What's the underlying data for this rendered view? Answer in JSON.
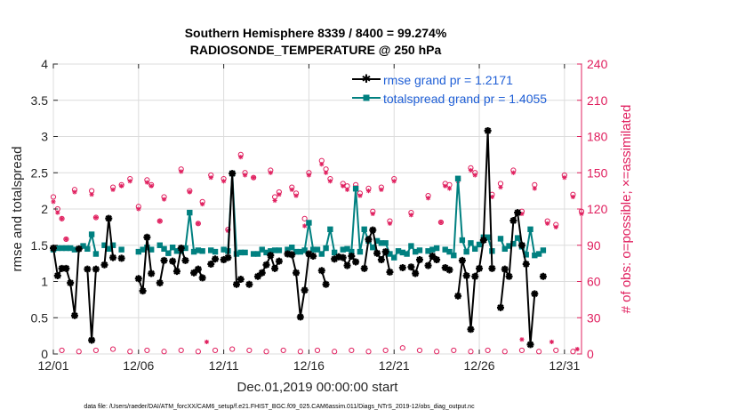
{
  "chart_data": {
    "type": "line",
    "title_line1": "Southern Hemisphere 8339 / 8400 = 99.274%",
    "title_line2": "RADIOSONDE_TEMPERATURE @ 250 hPa",
    "xlabel": "Dec.01,2019 00:00:00 start",
    "ylabel_left": "rmse and totalspread",
    "ylabel_right": "# of obs: o=possible; ×=assimilated",
    "footnote": "data file: /Users/raeder/DAI/ATM_forcXX/CAM6_setup/f.e21.FHIST_BGC.f09_025.CAM6assim.011/Diags_NTrS_2019-12/obs_diag_output.nc",
    "xlim": [
      0,
      31
    ],
    "ylim_left": [
      0,
      4
    ],
    "ylim_right": [
      0,
      240
    ],
    "x_ticks": [
      0,
      5,
      10,
      15,
      20,
      25,
      30
    ],
    "x_tick_labels": [
      "12/01",
      "12/06",
      "12/11",
      "12/16",
      "12/21",
      "12/26",
      "12/31"
    ],
    "y_ticks_left": [
      0,
      0.5,
      1,
      1.5,
      2,
      2.5,
      3,
      3.5,
      4
    ],
    "y_tick_labels_left": [
      "0",
      "0.5",
      "1",
      "1.5",
      "2",
      "2.5",
      "3",
      "3.5",
      "4"
    ],
    "y_ticks_right": [
      0,
      30,
      60,
      90,
      120,
      150,
      180,
      210,
      240
    ],
    "y_tick_labels_right": [
      "0",
      "30",
      "60",
      "90",
      "120",
      "150",
      "180",
      "210",
      "240"
    ],
    "x_step_days": 0.25,
    "colors": {
      "rmse": "#000000",
      "spread": "#008080",
      "obs": "#e0205f",
      "axis_right": "#e0205f"
    },
    "series": [
      {
        "name": "rmse grand pr = 1.2171",
        "key": "rmse",
        "values": [
          1.46,
          1.08,
          1.18,
          1.18,
          0.98,
          0.53,
          1.45,
          null,
          1.17,
          0.19,
          1.17,
          null,
          1.23,
          1.87,
          1.33,
          null,
          1.32,
          null,
          null,
          null,
          1.04,
          0.87,
          1.61,
          1.11,
          null,
          0.98,
          1.29,
          null,
          1.28,
          1.14,
          1.46,
          1.29,
          null,
          1.12,
          1.17,
          1.05,
          null,
          1.24,
          1.31,
          null,
          1.3,
          1.33,
          2.49,
          0.96,
          1.03,
          null,
          0.96,
          null,
          1.07,
          1.12,
          1.23,
          1.36,
          1.18,
          1.28,
          null,
          1.38,
          1.37,
          1.12,
          0.51,
          0.88,
          1.38,
          1.35,
          null,
          1.15,
          0.96,
          null,
          1.31,
          1.34,
          1.33,
          1.22,
          1.35,
          1.27,
          null,
          1.18,
          1.58,
          1.71,
          1.39,
          1.3,
          1.41,
          1.13,
          null,
          null,
          1.19,
          null,
          1.2,
          1.11,
          1.3,
          null,
          1.22,
          1.35,
          1.3,
          null,
          1.19,
          1.16,
          null,
          0.8,
          1.29,
          1.08,
          0.34,
          1.07,
          1.18,
          1.57,
          3.08,
          1.18,
          null,
          0.64,
          1.17,
          1.07,
          1.84,
          1.95,
          1.5,
          1.24,
          0.13,
          0.83,
          null,
          1.07
        ]
      },
      {
        "name": "totalspread grand pr = 1.4055",
        "key": "spread",
        "values": [
          1.44,
          1.46,
          1.46,
          1.46,
          1.46,
          1.44,
          null,
          1.49,
          1.45,
          1.65,
          1.38,
          null,
          1.5,
          1.45,
          1.5,
          null,
          1.44,
          null,
          null,
          null,
          1.41,
          1.44,
          1.47,
          1.44,
          null,
          1.5,
          1.45,
          1.39,
          1.47,
          1.42,
          1.42,
          1.46,
          1.95,
          1.41,
          1.43,
          1.42,
          null,
          1.43,
          1.41,
          null,
          1.44,
          1.42,
          2.49,
          1.38,
          1.4,
          1.4,
          null,
          1.38,
          1.38,
          1.44,
          1.4,
          1.42,
          1.43,
          1.43,
          null,
          1.44,
          1.47,
          1.41,
          1.41,
          1.43,
          1.81,
          1.44,
          1.44,
          1.38,
          1.46,
          1.72,
          1.4,
          null,
          1.44,
          1.45,
          1.41,
          2.28,
          1.41,
          1.72,
          1.56,
          1.47,
          1.56,
          1.53,
          1.53,
          1.38,
          1.33,
          1.42,
          1.4,
          1.38,
          1.49,
          1.41,
          1.43,
          null,
          1.42,
          1.44,
          1.46,
          null,
          1.44,
          1.41,
          1.36,
          2.42,
          1.57,
          1.41,
          1.53,
          1.45,
          1.51,
          1.61,
          1.61,
          1.42,
          null,
          1.59,
          1.45,
          1.49,
          1.52,
          1.6,
          1.48,
          1.37,
          1.72,
          1.36,
          1.38,
          1.43
        ]
      }
    ],
    "obs_possible_days": [
      0.0,
      0.25,
      0.5,
      0.75,
      1.25,
      2.25,
      2.5,
      3.5,
      4.0,
      4.5,
      5.0,
      5.5,
      5.75,
      6.25,
      6.5,
      7.5,
      8.0,
      8.5,
      8.75,
      9.25,
      10.0,
      10.25,
      11.0,
      11.25,
      11.75,
      12.75,
      13.0,
      13.25,
      14.0,
      14.25,
      14.75,
      15.0,
      15.75,
      16.0,
      16.25,
      17.0,
      17.25,
      17.75,
      18.0,
      18.5,
      18.75,
      19.25,
      19.75,
      20.0,
      21.0,
      22.0,
      22.75,
      23.0,
      23.25,
      23.75,
      24.5,
      24.75,
      25.25,
      25.75,
      26.25,
      27.0,
      27.5,
      28.25,
      29.0,
      29.5,
      30.0,
      30.5,
      31.0
    ],
    "obs_possible_counts": [
      130,
      120,
      112,
      95,
      136,
      135,
      113,
      138,
      140,
      145,
      122,
      144,
      140,
      110,
      130,
      153,
      135,
      108,
      126,
      148,
      145,
      103,
      165,
      150,
      146,
      152,
      130,
      134,
      138,
      133,
      112,
      150,
      160,
      153,
      145,
      141,
      139,
      140,
      133,
      137,
      118,
      138,
      110,
      145,
      117,
      131,
      109,
      141,
      140,
      145,
      154,
      150,
      95,
      132,
      141,
      152,
      118,
      140,
      110,
      107,
      148,
      132,
      118
    ],
    "obs_assim_days": [
      0.0,
      0.25,
      0.5,
      0.75,
      1.25,
      2.25,
      2.5,
      3.5,
      4.0,
      4.5,
      5.0,
      5.5,
      5.75,
      6.25,
      6.5,
      7.5,
      8.0,
      8.5,
      8.75,
      9.25,
      10.0,
      10.25,
      11.0,
      11.25,
      11.75,
      12.75,
      13.0,
      13.25,
      14.0,
      14.25,
      14.75,
      15.0,
      15.75,
      16.0,
      16.25,
      17.0,
      17.25,
      17.75,
      18.0,
      18.5,
      18.75,
      19.25,
      19.75,
      20.0,
      21.0,
      22.0,
      22.75,
      23.0,
      23.25,
      23.75,
      24.5,
      24.75,
      25.25,
      25.75,
      26.25,
      27.0,
      27.5,
      28.25,
      29.0,
      29.5,
      30.0,
      30.5,
      31.0
    ],
    "obs_assim_counts": [
      126,
      117,
      112,
      95,
      134,
      132,
      113,
      136,
      139,
      143,
      120,
      142,
      139,
      110,
      128,
      151,
      134,
      108,
      124,
      146,
      143,
      102,
      163,
      148,
      146,
      150,
      127,
      132,
      136,
      131,
      106,
      148,
      157,
      150,
      143,
      139,
      136,
      138,
      131,
      135,
      116,
      136,
      108,
      143,
      115,
      129,
      109,
      139,
      137,
      143,
      152,
      148,
      95,
      130,
      138,
      150,
      116,
      137,
      108,
      105,
      146,
      130,
      116
    ],
    "obs_low_possible_days": [
      0.5,
      1.5,
      2.5,
      3.5,
      4.5,
      5.5,
      6.5,
      7.5,
      8.5,
      9.5,
      10.5,
      11.5,
      12.5,
      13.5,
      14.5,
      15.5,
      16.5,
      17.5,
      18.5,
      19.5,
      20.5,
      21.5,
      22.5,
      23.5,
      24.5,
      25.5,
      26.5,
      27.5,
      28.5,
      29.5,
      30.5
    ],
    "obs_low_possible_counts": [
      3,
      2,
      3,
      4,
      2,
      3,
      2,
      3,
      2,
      3,
      4,
      3,
      2,
      3,
      2,
      3,
      2,
      3,
      2,
      3,
      5,
      3,
      2,
      3,
      2,
      3,
      2,
      3,
      2,
      3,
      2
    ],
    "obs_low_assim_days": [
      9.0,
      27.5,
      29.25,
      30.75
    ],
    "obs_low_assim_counts": [
      10,
      12,
      10,
      4
    ]
  }
}
